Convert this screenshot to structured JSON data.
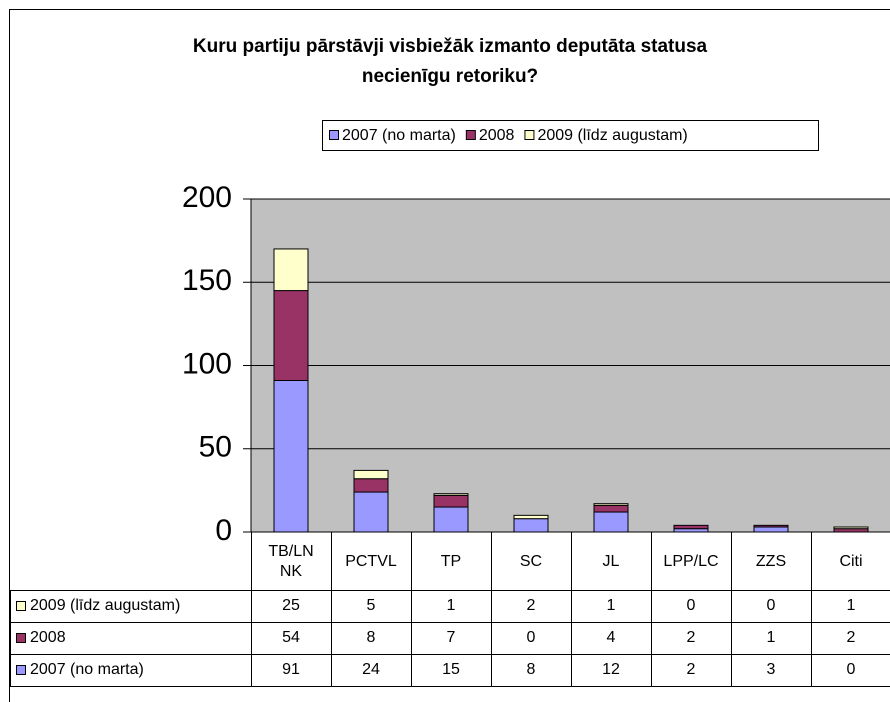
{
  "chart_data": {
    "type": "stacked_bar",
    "title": [
      "Kuru partiju pārstāvji visbiežāk izmanto deputāta statusa",
      "necienīgu retoriku?"
    ],
    "categories": [
      "TB/LNNK",
      "PCTVL",
      "TP",
      "SC",
      "JL",
      "LPP/LC",
      "ZZS",
      "Citi"
    ],
    "series": [
      {
        "name": "2007 (no marta)",
        "color": "#9999ff",
        "values": [
          91,
          24,
          15,
          8,
          12,
          2,
          3,
          0
        ]
      },
      {
        "name": "2008",
        "color": "#993366",
        "values": [
          54,
          8,
          7,
          0,
          4,
          2,
          1,
          2
        ]
      },
      {
        "name": "2009 (līdz augustam)",
        "color": "#ffffcc",
        "values": [
          25,
          5,
          1,
          2,
          1,
          0,
          0,
          1
        ]
      }
    ],
    "ylim": [
      0,
      200
    ],
    "yticks": [
      0,
      50,
      100,
      150,
      200
    ],
    "grid": true,
    "legend": "top"
  }
}
